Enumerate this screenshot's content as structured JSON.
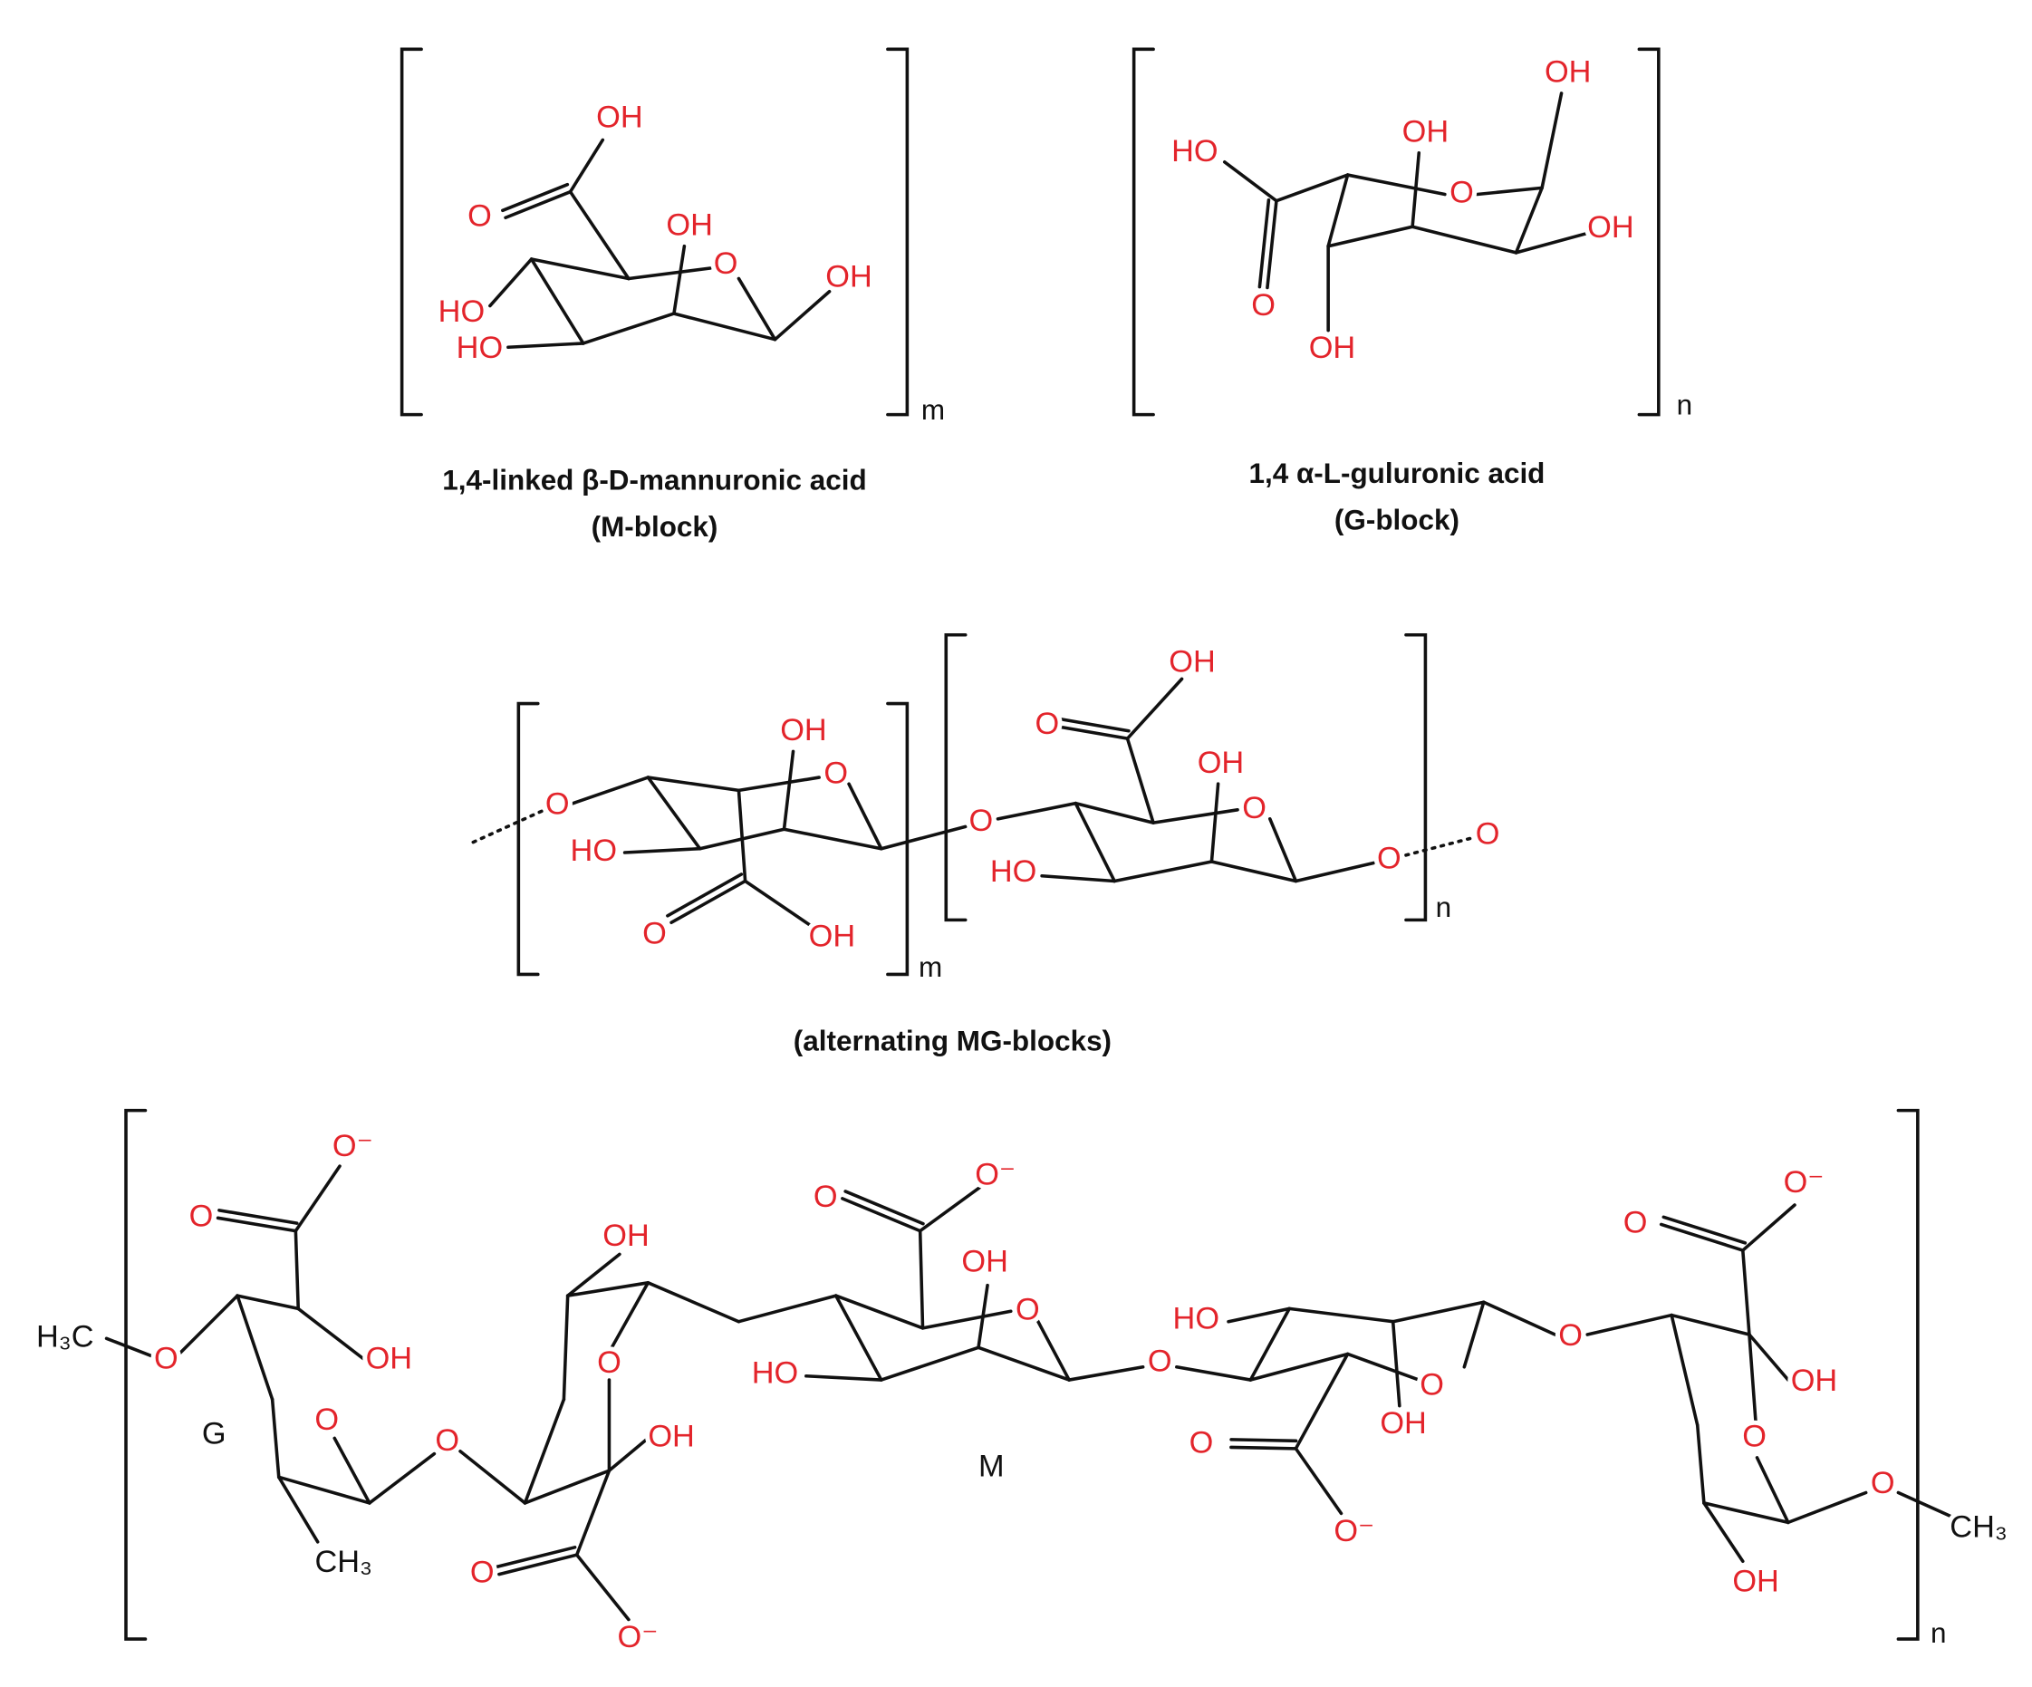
{
  "m_block": {
    "atoms": [
      "OH",
      "O",
      "OH",
      "O",
      "OH",
      "HO",
      "HO"
    ],
    "repeat": "m",
    "caption": "1,4-linked β-D-mannuronic acid",
    "subcaption": "(M-block)"
  },
  "g_block": {
    "atoms": [
      "OH",
      "OH",
      "HO",
      "O",
      "OH",
      "O",
      "OH"
    ],
    "repeat": "n",
    "caption": "1,4 α-L-guluronic acid",
    "subcaption": "(G-block)"
  },
  "mg_blocks": {
    "atoms": [
      "O",
      "OH",
      "O",
      "HO",
      "O",
      "OH",
      "O",
      "OH",
      "O",
      "OH",
      "O",
      "HO",
      "O",
      "O"
    ],
    "repeat_m": "m",
    "repeat_n": "n",
    "caption": "(alternating MG-blocks)"
  },
  "alginate_chain": {
    "atoms": [
      "O⁻",
      "O",
      "H₃C",
      "O",
      "OH",
      "G",
      "O",
      "CH₃",
      "O",
      "OH",
      "O",
      "OH",
      "O",
      "O⁻",
      "O⁻",
      "O",
      "OH",
      "O",
      "HO",
      "O",
      "M",
      "HO",
      "O",
      "OH",
      "O",
      "O⁻",
      "O",
      "O⁻",
      "O",
      "OH",
      "O",
      "O",
      "CH₃",
      "OH"
    ],
    "repeat": "n"
  }
}
